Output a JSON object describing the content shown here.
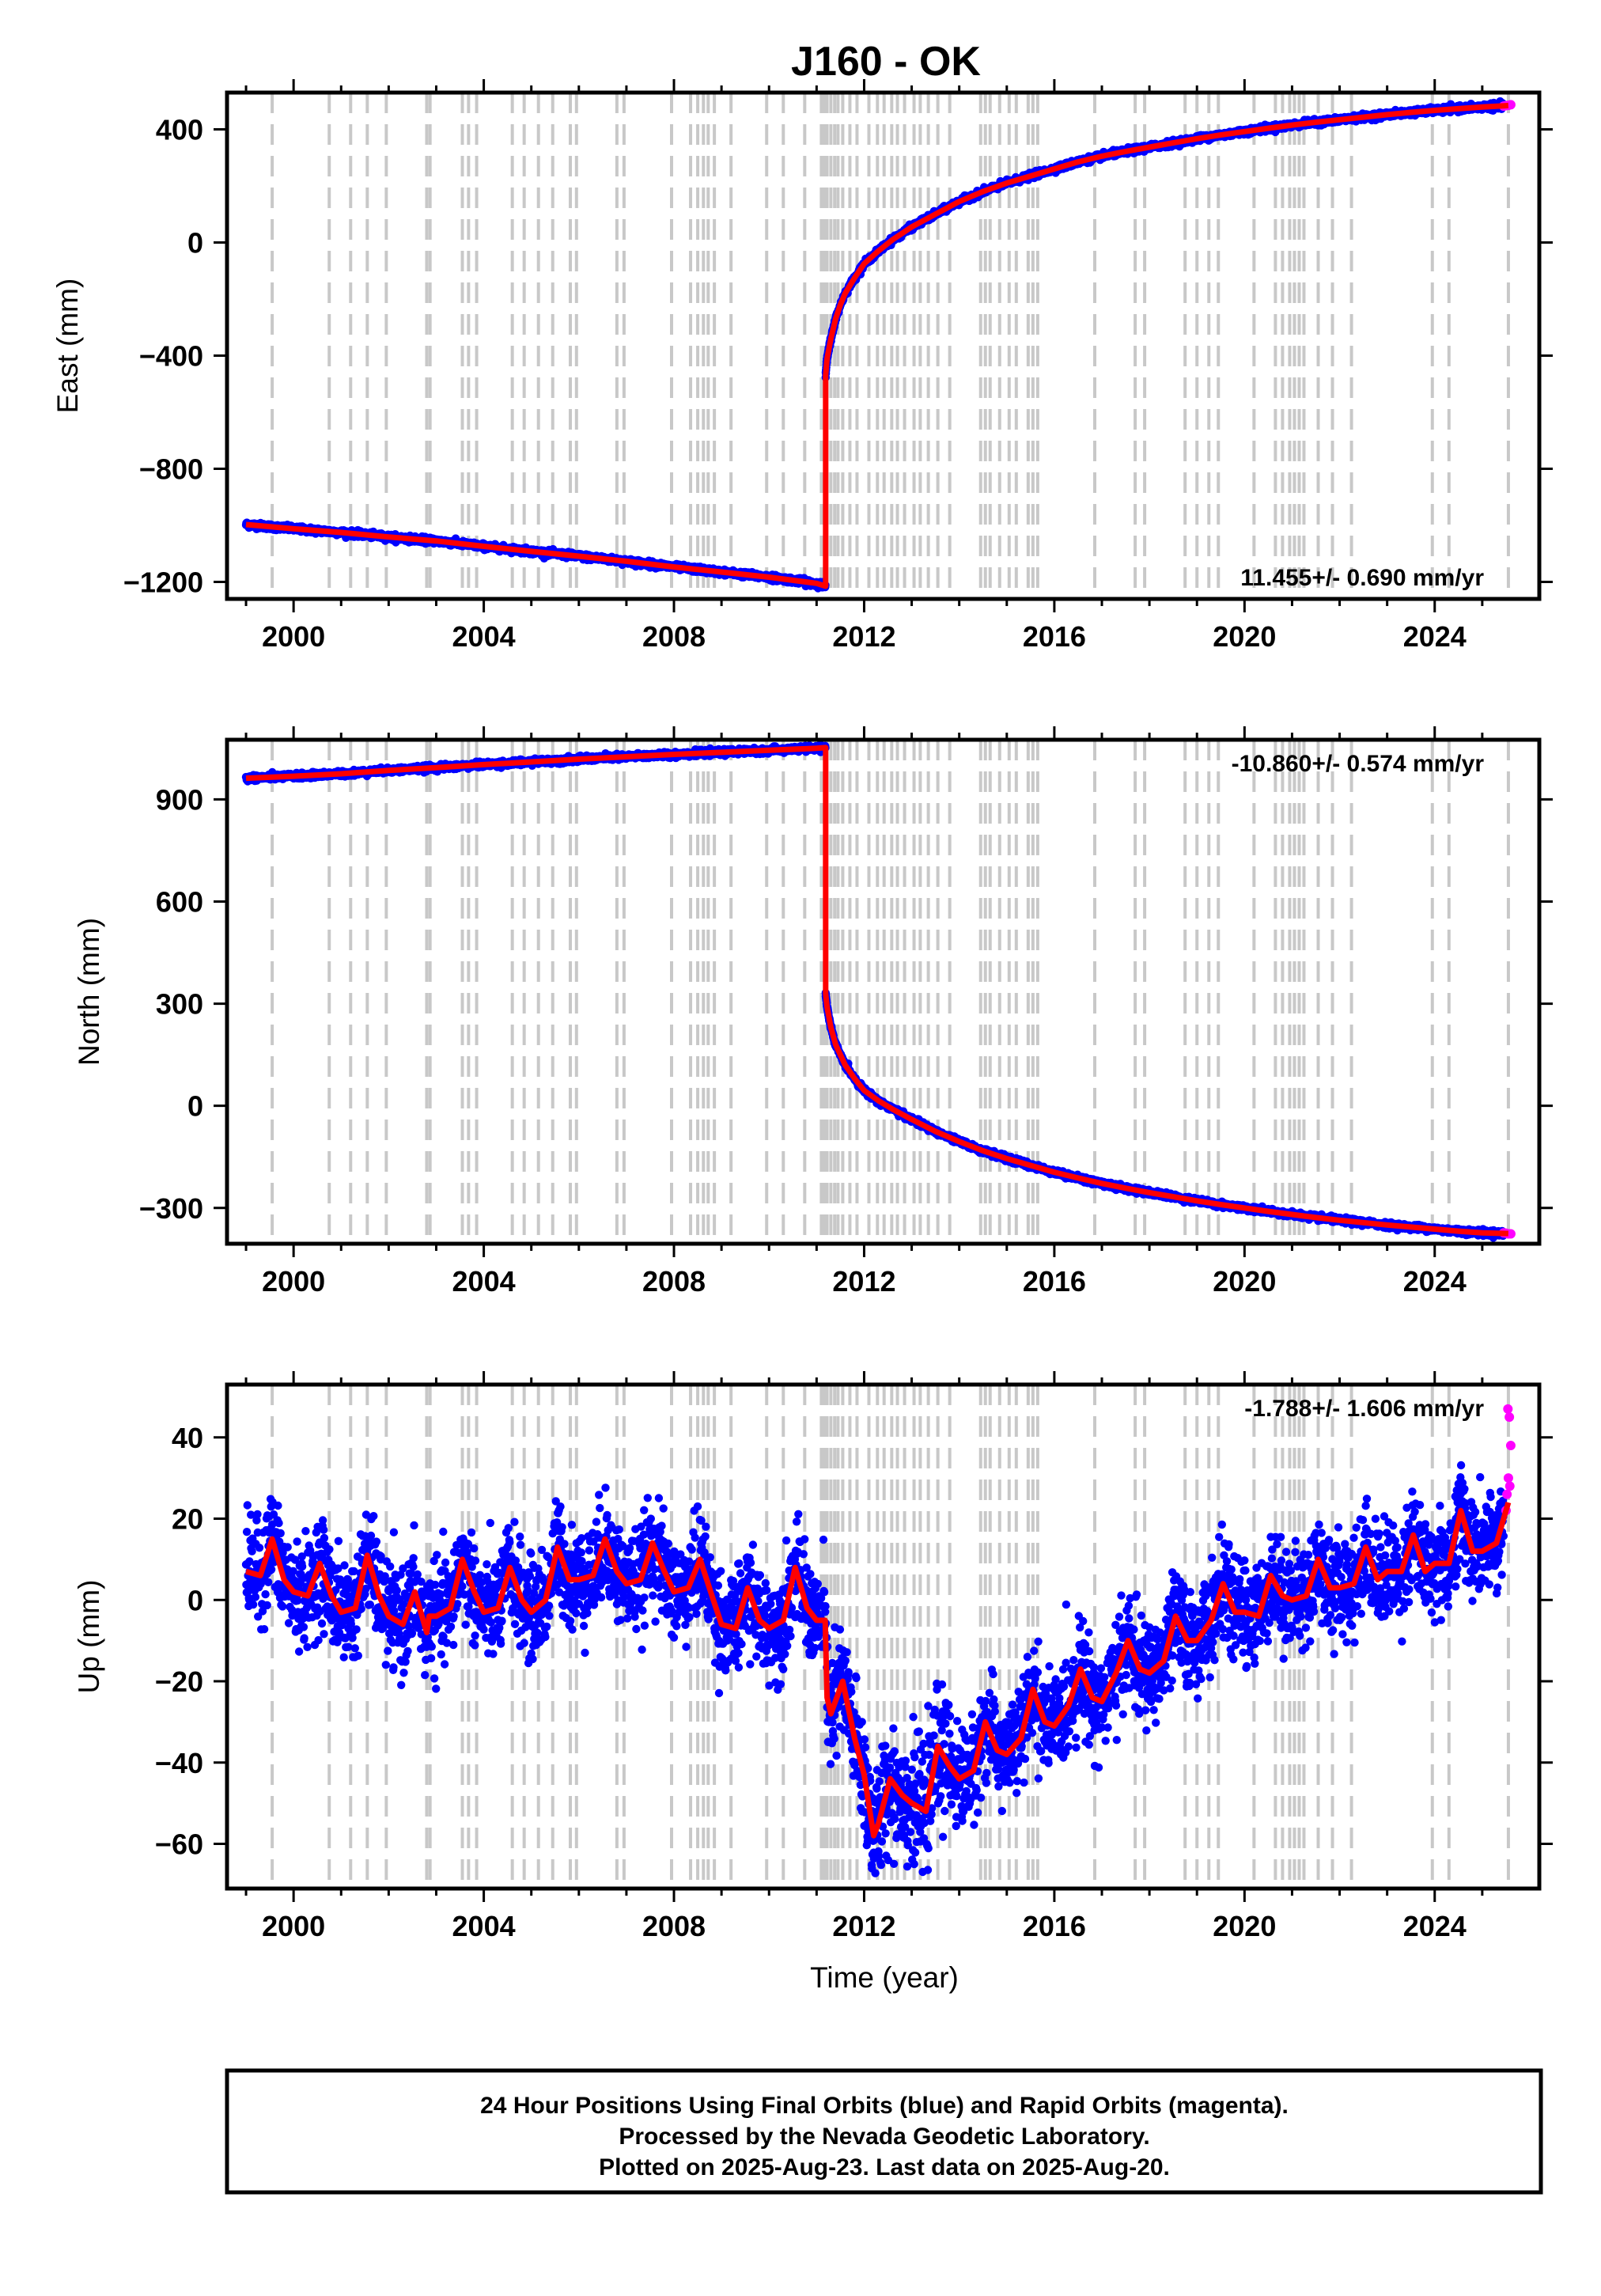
{
  "title": "J160 - OK",
  "xlabel": "Time (year)",
  "x_ticks": [
    2000,
    2004,
    2008,
    2012,
    2016,
    2020,
    2024
  ],
  "xlim": [
    1998.6,
    2026.2
  ],
  "colors": {
    "final_orbits": "#0000ff",
    "rapid_orbits": "#ff00ff",
    "model": "#ff0000",
    "event_lines": "#c8c8c8"
  },
  "event_lines": [
    1999.55,
    2000.75,
    2001.2,
    2001.55,
    2001.95,
    2002.8,
    2002.87,
    2003.55,
    2003.68,
    2003.85,
    2004.6,
    2004.85,
    2005.15,
    2005.45,
    2005.82,
    2005.95,
    2006.8,
    2006.95,
    2007.95,
    2008.35,
    2008.5,
    2008.62,
    2008.72,
    2008.85,
    2009.2,
    2009.95,
    2010.3,
    2010.75,
    2011.1,
    2011.16,
    2011.22,
    2011.3,
    2011.38,
    2011.45,
    2011.55,
    2011.7,
    2011.85,
    2012.1,
    2012.28,
    2012.42,
    2012.58,
    2012.7,
    2012.85,
    2013.05,
    2013.18,
    2013.35,
    2013.55,
    2013.8,
    2014.45,
    2014.55,
    2014.65,
    2014.85,
    2015.05,
    2015.2,
    2015.45,
    2015.55,
    2015.65,
    2016.85,
    2017.7,
    2017.9,
    2018.75,
    2019.0,
    2019.25,
    2019.45,
    2020.2,
    2020.65,
    2020.8,
    2020.95,
    2021.05,
    2021.15,
    2021.25,
    2021.55,
    2021.85,
    2022.25,
    2023.95,
    2024.3,
    2025.55
  ],
  "chart_data": [
    {
      "type": "scatter",
      "name": "east",
      "ylabel": "East (mm)",
      "ylim": [
        -1260,
        530
      ],
      "y_ticks": [
        400,
        0,
        -400,
        -800,
        -1200
      ],
      "rate": "11.455+/- 0.690 mm/yr",
      "rate_position": "bottom-right",
      "noise": 5,
      "series": [
        {
          "name": "model",
          "x": [
            1999.0,
            2000.0,
            2001.0,
            2002.0,
            2003.0,
            2004.0,
            2005.0,
            2006.0,
            2007.0,
            2008.0,
            2009.0,
            2010.0,
            2011.0,
            2011.19,
            2011.191,
            2011.22,
            2011.3,
            2011.4,
            2011.5,
            2011.6,
            2011.8,
            2012.0,
            2012.3,
            2012.6,
            2013.0,
            2013.5,
            2014.0,
            2014.5,
            2015.0,
            2015.5,
            2016.0,
            2016.5,
            2017.0,
            2017.5,
            2018.0,
            2018.5,
            2019.0,
            2019.5,
            2020.0,
            2020.5,
            2021.0,
            2021.5,
            2022.0,
            2022.5,
            2023.0,
            2023.5,
            2024.0,
            2024.5,
            2025.0,
            2025.55
          ],
          "y": [
            -997,
            -1012,
            -1025,
            -1041,
            -1055,
            -1074,
            -1092,
            -1109,
            -1127,
            -1147,
            -1165,
            -1183,
            -1205,
            -1215,
            -470,
            -410,
            -340,
            -270,
            -220,
            -180,
            -125,
            -75,
            -30,
            10,
            55,
            100,
            145,
            180,
            210,
            235,
            260,
            285,
            305,
            322,
            337,
            352,
            367,
            380,
            392,
            404,
            415,
            425,
            434,
            443,
            452,
            460,
            467,
            473,
            479,
            484
          ]
        }
      ],
      "rapid_x": [
        2025.45,
        2025.5,
        2025.55,
        2025.6
      ],
      "rapid_y": [
        482,
        484,
        485,
        487
      ]
    },
    {
      "type": "scatter",
      "name": "north",
      "ylabel": "North (mm)",
      "ylim": [
        -405,
        1075
      ],
      "y_ticks": [
        900,
        600,
        300,
        0,
        -300
      ],
      "rate": "-10.860+/- 0.574 mm/yr",
      "rate_position": "top-right",
      "noise": 4,
      "series": [
        {
          "name": "model",
          "x": [
            1999.0,
            2000.0,
            2001.0,
            2002.0,
            2003.0,
            2004.0,
            2005.0,
            2006.0,
            2007.0,
            2008.0,
            2009.0,
            2010.0,
            2011.0,
            2011.19,
            2011.191,
            2011.22,
            2011.3,
            2011.4,
            2011.5,
            2011.6,
            2011.8,
            2012.0,
            2012.3,
            2012.6,
            2013.0,
            2013.5,
            2014.0,
            2014.5,
            2015.0,
            2015.5,
            2016.0,
            2016.5,
            2017.0,
            2017.5,
            2018.0,
            2018.5,
            2019.0,
            2019.5,
            2020.0,
            2020.5,
            2021.0,
            2021.5,
            2022.0,
            2022.5,
            2023.0,
            2023.5,
            2024.0,
            2024.5,
            2025.0,
            2025.55
          ],
          "y": [
            962,
            968,
            975,
            985,
            993,
            1002,
            1010,
            1018,
            1025,
            1032,
            1038,
            1044,
            1050,
            1052,
            330,
            290,
            230,
            180,
            150,
            120,
            80,
            45,
            15,
            -10,
            -40,
            -75,
            -105,
            -132,
            -155,
            -175,
            -195,
            -212,
            -228,
            -242,
            -255,
            -267,
            -279,
            -290,
            -300,
            -310,
            -319,
            -328,
            -336,
            -343,
            -350,
            -356,
            -362,
            -368,
            -373,
            -375
          ]
        }
      ],
      "rapid_x": [
        2025.45,
        2025.5,
        2025.55,
        2025.6
      ],
      "rapid_y": [
        -373,
        -374,
        -376,
        -376
      ]
    },
    {
      "type": "scatter",
      "name": "up",
      "ylabel": "Up (mm)",
      "ylim": [
        -71,
        53
      ],
      "y_ticks": [
        40,
        20,
        0,
        -20,
        -40,
        -60
      ],
      "rate": "-1.788+/- 1.606 mm/yr",
      "rate_position": "top-right",
      "noise": 6,
      "series": [
        {
          "name": "model",
          "x": [
            1999.0,
            1999.3,
            1999.55,
            1999.8,
            2000.0,
            2000.3,
            2000.55,
            2000.8,
            2001.0,
            2001.3,
            2001.55,
            2001.8,
            2002.0,
            2002.3,
            2002.55,
            2002.8,
            2002.85,
            2003.0,
            2003.3,
            2003.55,
            2003.8,
            2004.0,
            2004.3,
            2004.55,
            2004.8,
            2005.0,
            2005.3,
            2005.55,
            2005.8,
            2006.0,
            2006.3,
            2006.55,
            2006.8,
            2007.0,
            2007.3,
            2007.55,
            2007.8,
            2008.0,
            2008.3,
            2008.55,
            2008.8,
            2009.0,
            2009.3,
            2009.55,
            2009.8,
            2010.0,
            2010.3,
            2010.55,
            2010.8,
            2011.0,
            2011.18,
            2011.22,
            2011.3,
            2011.55,
            2011.8,
            2012.0,
            2012.2,
            2012.3,
            2012.55,
            2012.8,
            2013.0,
            2013.3,
            2013.55,
            2013.8,
            2014.0,
            2014.3,
            2014.55,
            2014.8,
            2015.0,
            2015.3,
            2015.55,
            2015.8,
            2016.0,
            2016.3,
            2016.55,
            2016.8,
            2017.0,
            2017.3,
            2017.55,
            2017.8,
            2018.0,
            2018.3,
            2018.55,
            2018.8,
            2019.0,
            2019.3,
            2019.55,
            2019.8,
            2020.0,
            2020.3,
            2020.55,
            2020.8,
            2021.0,
            2021.3,
            2021.55,
            2021.8,
            2022.0,
            2022.3,
            2022.55,
            2022.8,
            2023.0,
            2023.3,
            2023.55,
            2023.8,
            2024.0,
            2024.3,
            2024.55,
            2024.8,
            2025.0,
            2025.3,
            2025.55
          ],
          "y": [
            7,
            6,
            15,
            5,
            2,
            1,
            9,
            1,
            -3,
            -2,
            11,
            1,
            -4,
            -6,
            2,
            -8,
            -4,
            -4,
            -2,
            10,
            2,
            -3,
            -2,
            8,
            0,
            -3,
            0,
            13,
            5,
            5,
            6,
            15,
            7,
            4,
            5,
            14,
            7,
            2,
            3,
            10,
            1,
            -6,
            -7,
            3,
            -5,
            -7,
            -5,
            8,
            -2,
            -5,
            -5,
            -24,
            -28,
            -20,
            -34,
            -43,
            -58,
            -55,
            -44,
            -48,
            -50,
            -52,
            -36,
            -41,
            -44,
            -42,
            -30,
            -37,
            -38,
            -34,
            -22,
            -30,
            -31,
            -26,
            -17,
            -24,
            -25,
            -18,
            -10,
            -17,
            -18,
            -15,
            -4,
            -10,
            -10,
            -5,
            4,
            -3,
            -3,
            -4,
            6,
            1,
            0,
            1,
            10,
            3,
            3,
            4,
            13,
            5,
            7,
            7,
            16,
            7,
            9,
            9,
            22,
            12,
            12,
            14,
            24
          ]
        }
      ],
      "rapid_x": [
        2025.5,
        2025.52,
        2025.55,
        2025.58,
        2025.6,
        2025.57,
        2025.54
      ],
      "rapid_y": [
        22,
        26,
        30,
        28,
        38,
        45,
        47
      ]
    }
  ],
  "footer": {
    "line1": "24 Hour Positions Using Final Orbits (blue) and Rapid Orbits (magenta).",
    "line2": "Processed by the Nevada Geodetic Laboratory.",
    "line3": "Plotted on 2025-Aug-23. Last data on 2025-Aug-20."
  }
}
